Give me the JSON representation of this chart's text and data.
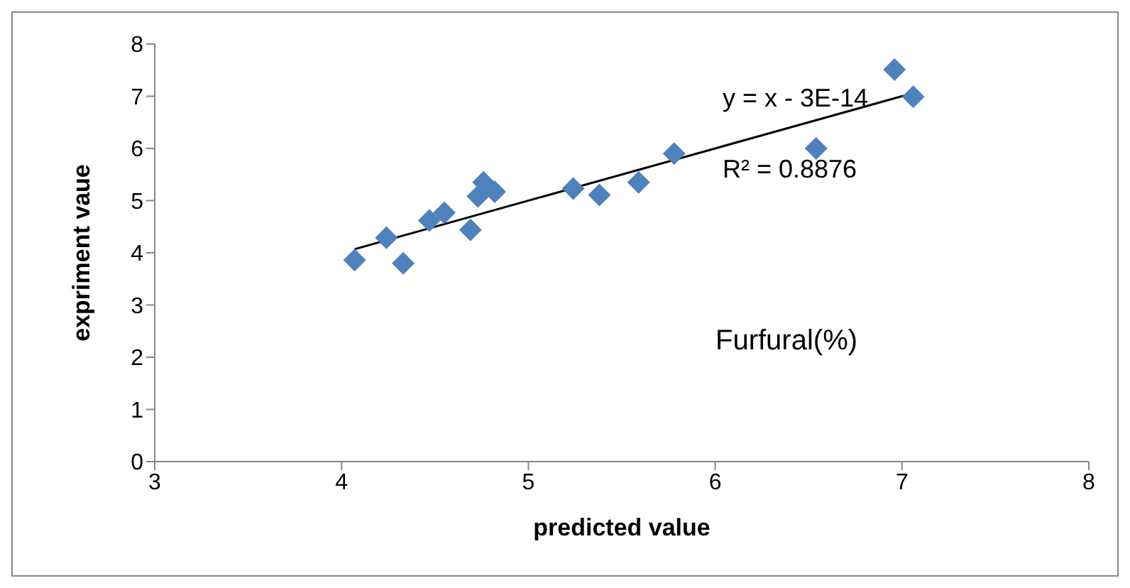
{
  "chart_data": {
    "type": "scatter",
    "xlabel": "predicted value",
    "ylabel": "expriment vaue",
    "xlim": [
      3,
      8
    ],
    "xticks": [
      3,
      4,
      5,
      6,
      7,
      8
    ],
    "ylim": [
      0,
      8
    ],
    "yticks": [
      0,
      1,
      2,
      3,
      4,
      5,
      6,
      7,
      8
    ],
    "grid": false,
    "series": [
      {
        "marker": "diamond",
        "color": "#4f81bd",
        "x": [
          4.07,
          4.24,
          4.33,
          4.47,
          4.55,
          4.69,
          4.73,
          4.76,
          4.82,
          5.24,
          5.38,
          5.59,
          5.78,
          6.54,
          6.96,
          7.06
        ],
        "values": [
          3.86,
          4.29,
          3.8,
          4.62,
          4.77,
          4.44,
          5.08,
          5.35,
          5.17,
          5.23,
          5.11,
          5.35,
          5.9,
          6.0,
          7.51,
          6.99
        ]
      },
      {
        "type": "line",
        "color": "#000000",
        "x": [
          4.07,
          7.06
        ],
        "values": [
          4.07,
          7.06
        ]
      }
    ],
    "annotations": [
      "y = x - 3E-14",
      "R² = 0.8876",
      "Furfural(%)"
    ]
  }
}
